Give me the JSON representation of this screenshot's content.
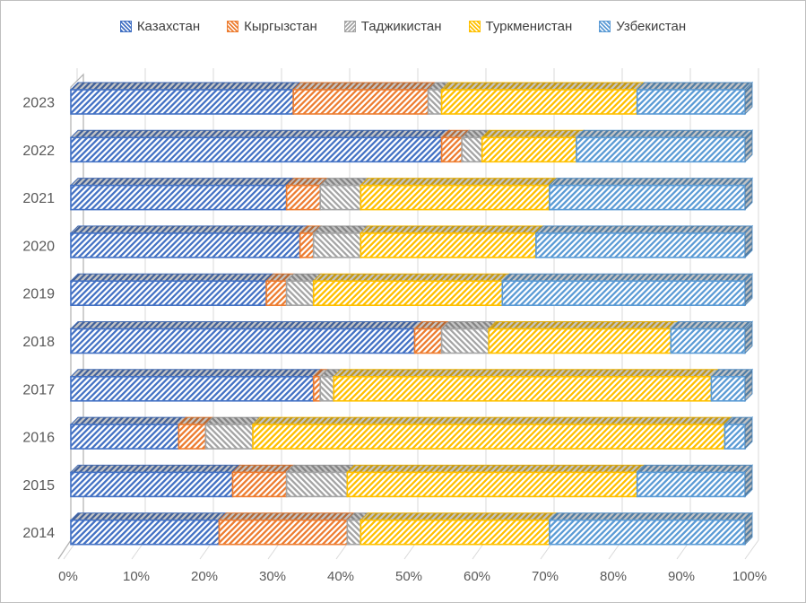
{
  "window": {
    "background": "#FFFFFF",
    "border_color": "#BFBFBF"
  },
  "chart_data": {
    "type": "bar",
    "orientation": "horizontal",
    "stacked": true,
    "stacked_100_percent": true,
    "effect_3d": true,
    "legend_position": "top",
    "grid": true,
    "gridline_color": "#D9D9D9",
    "axis_text_color": "#595959",
    "wall_color": "#AFAFAF",
    "categories": [
      "2023",
      "2022",
      "2021",
      "2020",
      "2019",
      "2018",
      "2017",
      "2016",
      "2015",
      "2014"
    ],
    "series": [
      {
        "name": "Казахстан",
        "key": "kazakhstan",
        "color": "#4472C4",
        "hatch_angle": 45,
        "values": [
          33,
          55,
          32,
          34,
          29,
          51,
          36,
          16,
          24,
          22
        ]
      },
      {
        "name": "Кыргызстан",
        "key": "kyrgyzstan",
        "color": "#ED7D31",
        "hatch_angle": 45,
        "values": [
          20,
          3,
          5,
          2,
          3,
          4,
          1,
          4,
          8,
          19
        ]
      },
      {
        "name": "Таджикистан",
        "key": "tajikistan",
        "color": "#A5A5A5",
        "hatch_angle": 135,
        "values": [
          2,
          3,
          6,
          7,
          4,
          7,
          2,
          7,
          9,
          2
        ]
      },
      {
        "name": "Туркменистан",
        "key": "turkmenistan",
        "color": "#FFC000",
        "hatch_angle": 45,
        "values": [
          29,
          14,
          28,
          26,
          28,
          27,
          56,
          70,
          43,
          28
        ]
      },
      {
        "name": "Узбекистан",
        "key": "uzbekistan",
        "color": "#5B9BD5",
        "hatch_angle": 45,
        "values": [
          16,
          25,
          29,
          31,
          36,
          11,
          5,
          3,
          16,
          29
        ]
      }
    ],
    "x_axis": {
      "min": 0,
      "max": 100,
      "unit": "%",
      "ticks": [
        "0%",
        "10%",
        "20%",
        "30%",
        "40%",
        "50%",
        "60%",
        "70%",
        "80%",
        "90%",
        "100%"
      ]
    },
    "y_axis": {
      "ticks": [
        "2023",
        "2022",
        "2021",
        "2020",
        "2019",
        "2018",
        "2017",
        "2016",
        "2015",
        "2014"
      ]
    }
  }
}
